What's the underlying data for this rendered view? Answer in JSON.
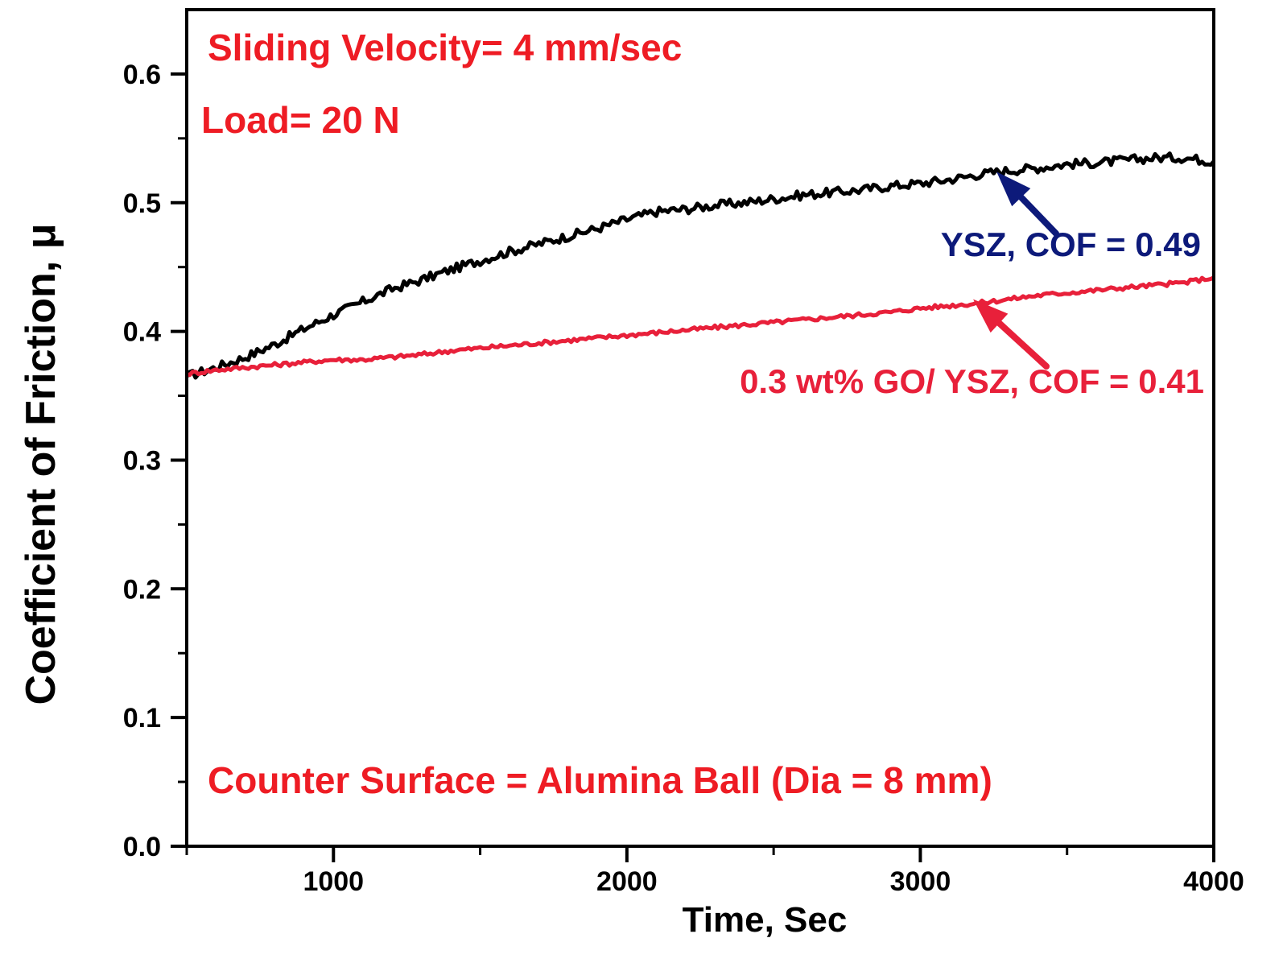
{
  "chart_data": {
    "type": "line",
    "xlabel": "Time, Sec",
    "ylabel": "Coefficient of Friction, μ",
    "xlim": [
      500,
      4000
    ],
    "ylim": [
      0.0,
      0.65
    ],
    "xticks": [
      1000,
      2000,
      3000,
      4000
    ],
    "yticks": [
      0.0,
      0.1,
      0.2,
      0.3,
      0.4,
      0.5,
      0.6
    ],
    "xtick_labels": [
      "1000",
      "2000",
      "3000",
      "4000"
    ],
    "ytick_labels": [
      "0.0",
      "0.1",
      "0.2",
      "0.3",
      "0.4",
      "0.5",
      "0.6"
    ],
    "grid": false,
    "series": [
      {
        "color": "#000000",
        "x": [
          500,
          600,
          700,
          800,
          900,
          1000,
          1100,
          1200,
          1300,
          1400,
          1500,
          1600,
          1700,
          1800,
          1900,
          2000,
          2100,
          2200,
          2300,
          2400,
          2500,
          2600,
          2700,
          2800,
          2900,
          3000,
          3100,
          3200,
          3300,
          3400,
          3500,
          3600,
          3700,
          3800,
          3900,
          4000
        ],
        "y": [
          0.365,
          0.372,
          0.38,
          0.39,
          0.402,
          0.413,
          0.423,
          0.433,
          0.44,
          0.448,
          0.455,
          0.462,
          0.468,
          0.474,
          0.48,
          0.487,
          0.493,
          0.495,
          0.498,
          0.5,
          0.503,
          0.506,
          0.508,
          0.51,
          0.513,
          0.515,
          0.518,
          0.522,
          0.525,
          0.527,
          0.53,
          0.531,
          0.533,
          0.535,
          0.535,
          0.532
        ]
      },
      {
        "color": "#e8203a",
        "x": [
          500,
          600,
          700,
          800,
          900,
          1000,
          1100,
          1200,
          1300,
          1400,
          1500,
          1600,
          1700,
          1800,
          1900,
          2000,
          2100,
          2200,
          2300,
          2400,
          2500,
          2600,
          2700,
          2800,
          2900,
          3000,
          3100,
          3200,
          3300,
          3400,
          3500,
          3600,
          3700,
          3800,
          3900,
          4000
        ],
        "y": [
          0.367,
          0.37,
          0.372,
          0.374,
          0.376,
          0.378,
          0.378,
          0.38,
          0.382,
          0.385,
          0.387,
          0.389,
          0.391,
          0.393,
          0.395,
          0.397,
          0.399,
          0.401,
          0.403,
          0.405,
          0.407,
          0.409,
          0.411,
          0.413,
          0.415,
          0.418,
          0.42,
          0.422,
          0.425,
          0.428,
          0.43,
          0.432,
          0.434,
          0.436,
          0.438,
          0.442
        ]
      }
    ],
    "annotations": [
      {
        "text": "Sliding Velocity= 4 mm/sec",
        "color": "#ee1c24"
      },
      {
        "text": "Load= 20 N",
        "color": "#ee1c24"
      },
      {
        "text": "Counter Surface = Alumina Ball (Dia = 8 mm)",
        "color": "#ee1c24"
      },
      {
        "text": "YSZ, COF = 0.49",
        "color": "#0d1a7a",
        "arrow_to": [
          3260,
          0.524
        ]
      },
      {
        "text": "0.3 wt% GO/ YSZ, COF = 0.41",
        "color": "#e8203a",
        "arrow_to": [
          3180,
          0.425
        ]
      }
    ]
  }
}
